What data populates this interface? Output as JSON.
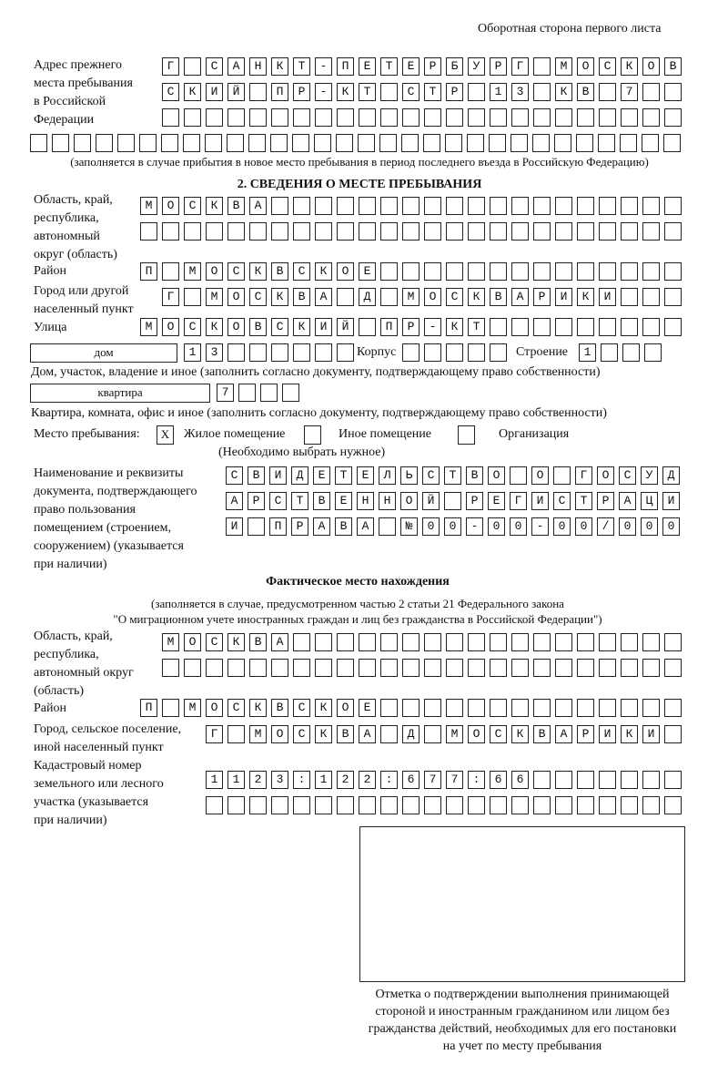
{
  "header": {
    "page_side": "Оборотная сторона первого листа"
  },
  "previous_address": {
    "label_lines": [
      "Адрес прежнего",
      "места пребывания",
      "в Российской",
      "Федерации"
    ],
    "rows": [
      "Г САНКТ-ПЕТЕРБУРГ МОСКОВ",
      "СКИЙ ПР-КТ СТР 13 КВ 7",
      "",
      ""
    ],
    "note": "(заполняется в случае прибытия в новое место пребывания в период последнего въезда в Российскую Федерацию)"
  },
  "section2": {
    "title": "2. СВЕДЕНИЯ О МЕСТЕ ПРЕБЫВАНИЯ",
    "region_label_lines": [
      "Область, край,",
      "республика,",
      "автономный",
      "округ (область)"
    ],
    "region_rows": [
      "МОСКВА",
      ""
    ],
    "district_label": "Район",
    "district": "П МОСКВСКОЕ",
    "city_label_lines": [
      "Город или другой",
      "населенный пункт"
    ],
    "city": "Г МОСКВА Д МОСКВАРИКИ",
    "street_label": "Улица",
    "street": "МОСКОВСКИЙ ПР-КТ",
    "house_type": "дом",
    "house_number": "13",
    "korpus_label": "Корпус",
    "korpus": "",
    "building_label": "Строение",
    "building": "1",
    "house_caption": "Дом, участок, владение и иное (заполнить согласно документу, подтверждающему право собственности)",
    "apartment_type": "квартира",
    "apartment_number": "7",
    "apartment_caption": "Квартира, комната, офис и иное (заполнить согласно документу, подтверждающему право собственности)",
    "place_label": "Место пребывания:",
    "place_options": [
      {
        "label": "Жилое помещение",
        "mark": "X"
      },
      {
        "label": "Иное помещение",
        "mark": ""
      },
      {
        "label": "Организация",
        "mark": ""
      }
    ],
    "place_hint": "(Необходимо выбрать нужное)",
    "document_label_lines": [
      "Наименование и реквизиты",
      "документа, подтверждающего",
      "право пользования",
      "помещением (строением,",
      "сооружением) (указывается",
      "при наличии)"
    ],
    "document_rows": [
      "СВИДЕТЕЛЬСТВО О ГОСУД",
      "АРСТВЕННОЙ РЕГИСТРАЦИ",
      "И ПРАВА №00-00-00/000"
    ]
  },
  "actual_location": {
    "title": "Фактическое место нахождения",
    "note_lines": [
      "(заполняется в случае, предусмотренном частью 2 статьи 21 Федерального закона",
      "\"О миграционном учете иностранных граждан и лиц без гражданства в Российской Федерации\")"
    ],
    "region_label_lines": [
      "Область, край,",
      "республика,",
      "автономный округ",
      "(область)"
    ],
    "region_rows": [
      "МОСКВА",
      ""
    ],
    "district_label": "Район",
    "district": "П МОСКВСКОЕ",
    "city_label_lines": [
      "Город, сельское поселение,",
      "иной населенный пункт"
    ],
    "city": "Г МОСКВА Д МОСКВАРИКИ",
    "cadastral_label_lines": [
      "Кадастровый номер",
      "земельного или лесного",
      "участка (указывается",
      "при наличии)"
    ],
    "cadastral_rows": [
      "1123:122:677:66",
      ""
    ]
  },
  "stamp": {
    "caption_lines": [
      "Отметка о подтверждении выполнения принимающей",
      "стороной и иностранным гражданином или лицом без",
      "гражданства действий, необходимых для его постановки",
      "на учет по месту пребывания"
    ]
  }
}
